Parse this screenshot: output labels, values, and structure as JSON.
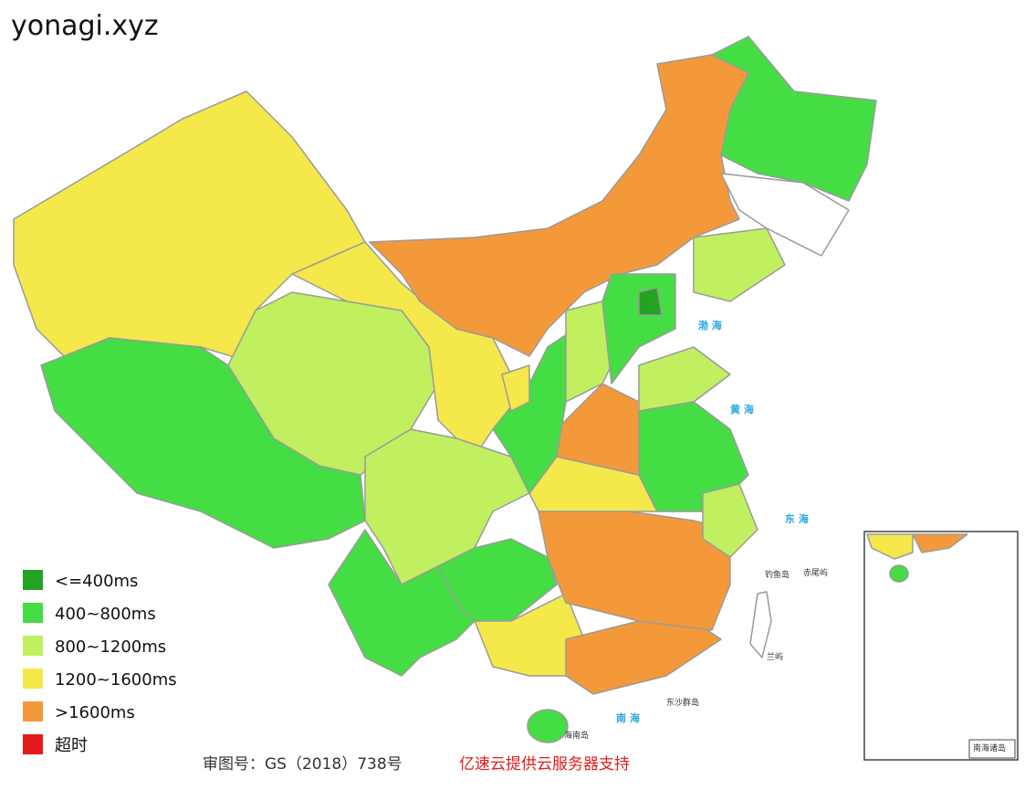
{
  "header": {
    "title": "yonagi.xyz"
  },
  "legend": {
    "items": [
      {
        "label": "<=400ms",
        "color": "#22a322"
      },
      {
        "label": "400~800ms",
        "color": "#44dd44"
      },
      {
        "label": "800~1200ms",
        "color": "#c0f060"
      },
      {
        "label": "1200~1600ms",
        "color": "#f4e84a"
      },
      {
        "label": ">1600ms",
        "color": "#f4993a"
      },
      {
        "label": "超时",
        "color": "#e41a1a"
      }
    ]
  },
  "map_labels": [
    "渤 海",
    "黄 海",
    "东 海",
    "钓鱼岛",
    "赤尾屿",
    "兰屿",
    "东沙群岛",
    "海南岛",
    "南 海",
    "南海诸岛"
  ],
  "footer": {
    "approval": "审图号：GS（2018）738号",
    "sponsor": "亿速云提供云服务器支持"
  }
}
